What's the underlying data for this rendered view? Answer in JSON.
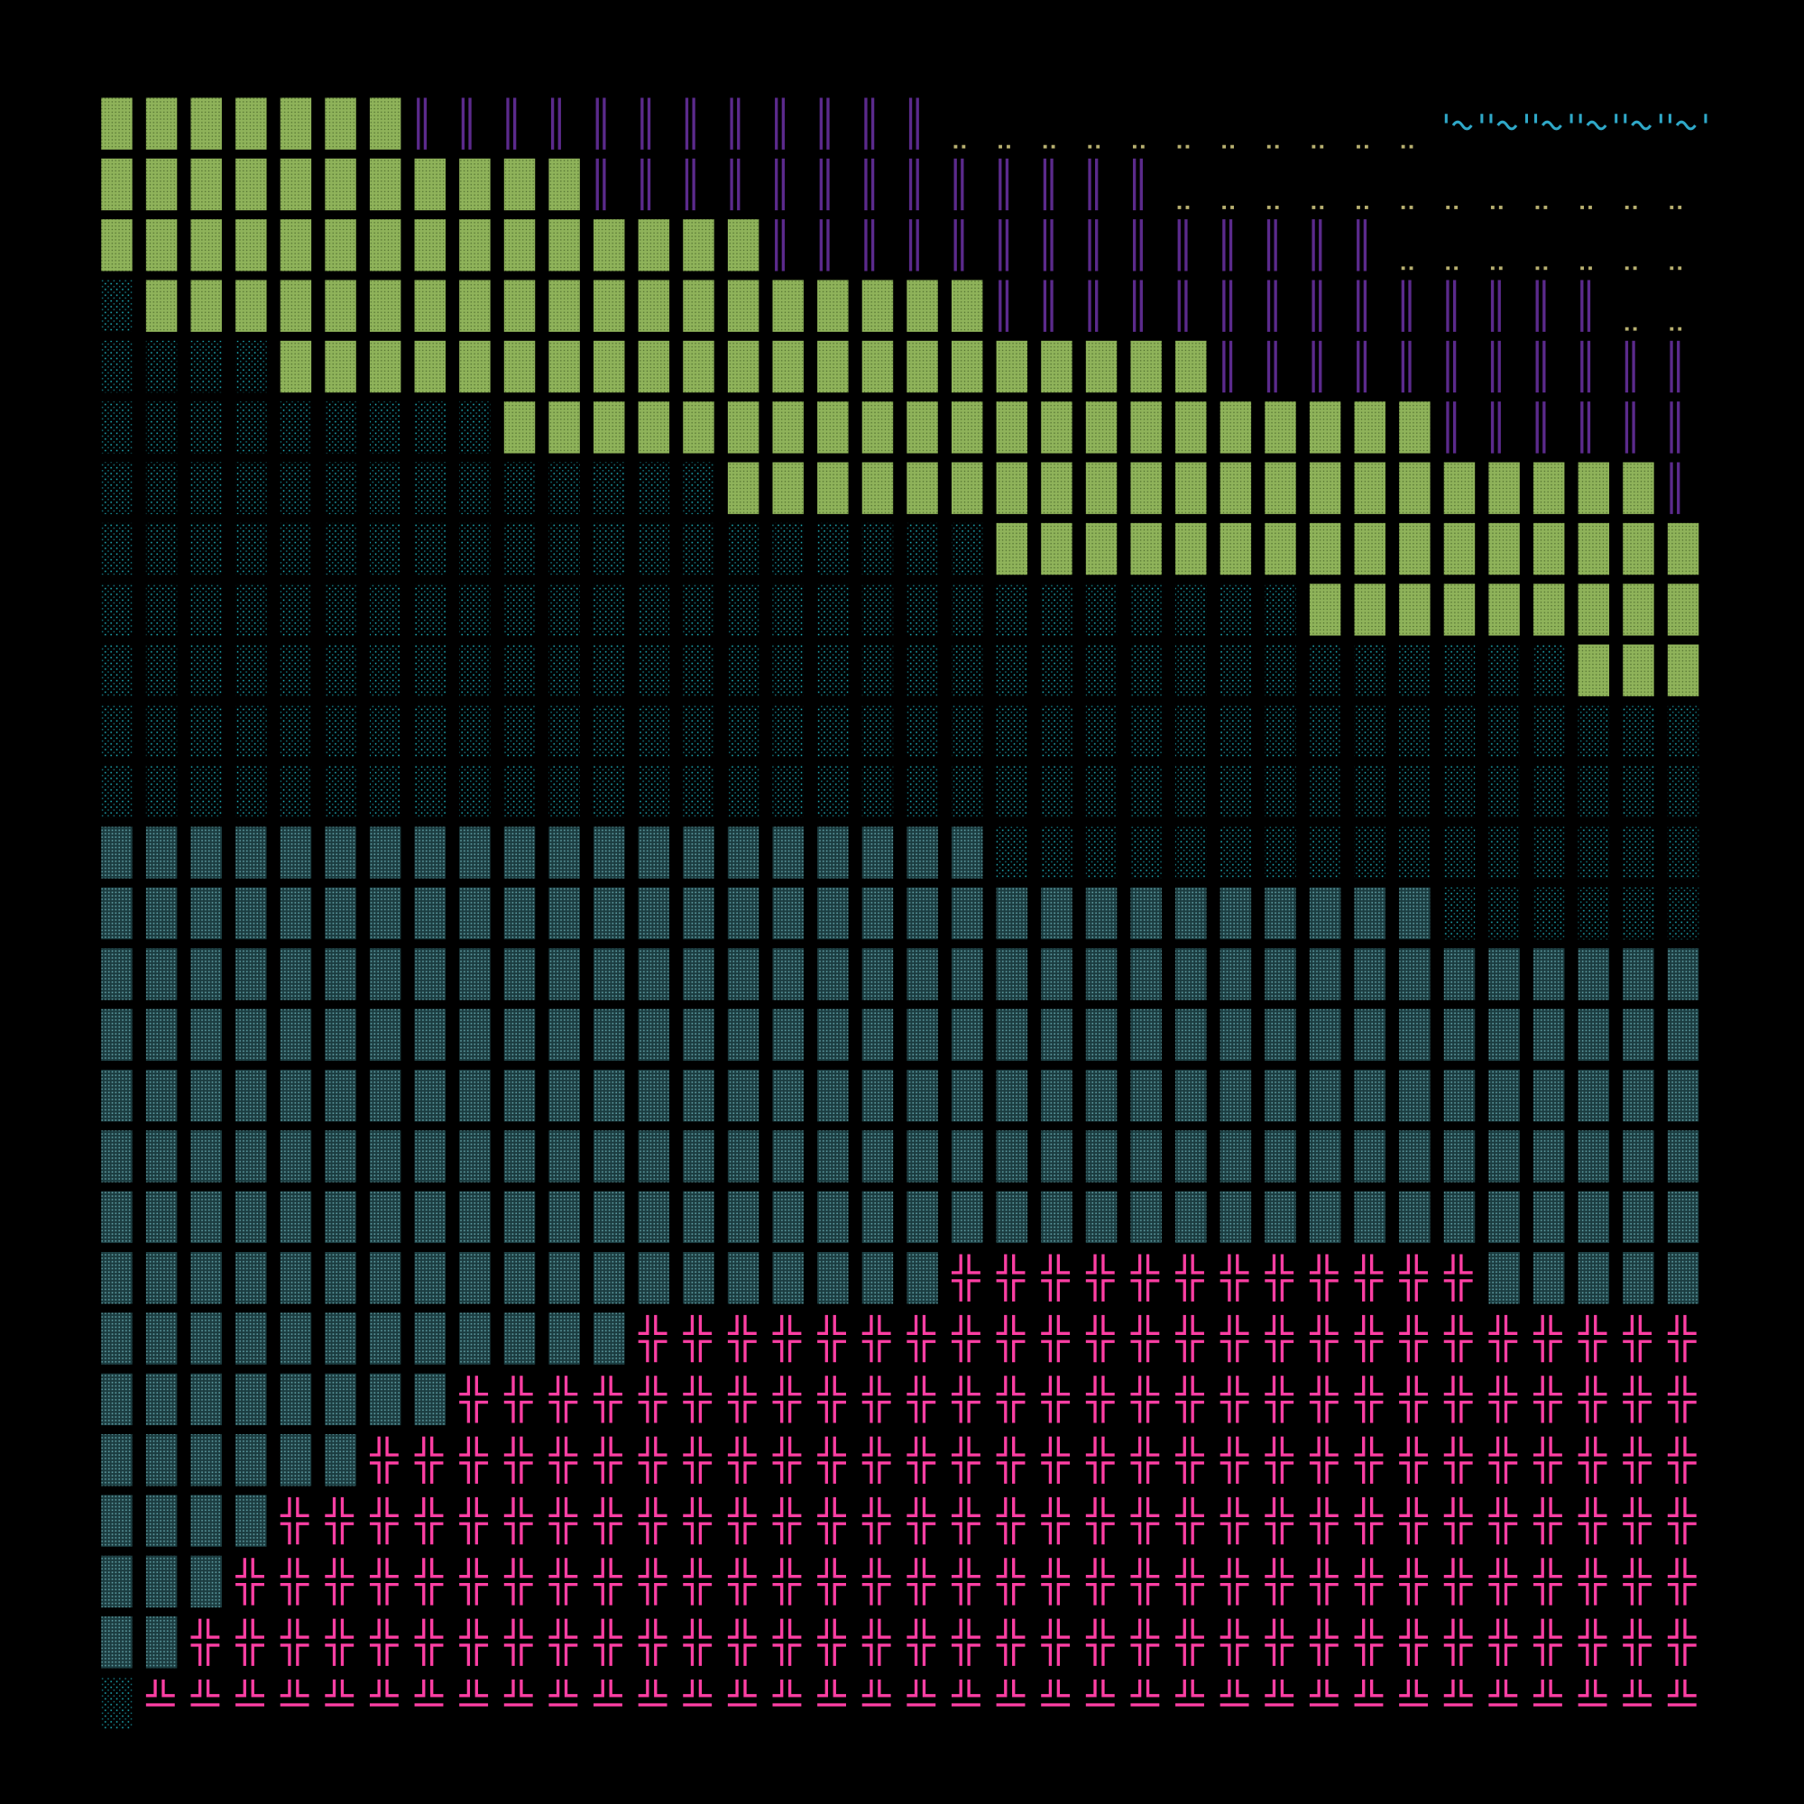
{
  "grid": {
    "rows": [
      [
        [
          "G",
          7
        ],
        [
          "P",
          12
        ],
        [
          "D",
          11
        ],
        [
          "W",
          6
        ]
      ],
      [
        [
          "G",
          11
        ],
        [
          "P",
          13
        ],
        [
          "D",
          12
        ]
      ],
      [
        [
          "G",
          15
        ],
        [
          "P",
          14
        ],
        [
          "D",
          7
        ]
      ],
      [
        [
          "C",
          1
        ],
        [
          "G",
          19
        ],
        [
          "P",
          14
        ],
        [
          "D",
          2
        ]
      ],
      [
        [
          "C",
          4
        ],
        [
          "G",
          21
        ],
        [
          "P",
          11
        ]
      ],
      [
        [
          "C",
          9
        ],
        [
          "G",
          21
        ],
        [
          "P",
          6
        ]
      ],
      [
        [
          "C",
          14
        ],
        [
          "G",
          21
        ],
        [
          "P",
          1
        ]
      ],
      [
        [
          "C",
          20
        ],
        [
          "G",
          16
        ]
      ],
      [
        [
          "C",
          27
        ],
        [
          "G",
          9
        ]
      ],
      [
        [
          "C",
          33
        ],
        [
          "G",
          3
        ]
      ],
      [
        [
          "C",
          36
        ]
      ],
      [
        [
          "C",
          36
        ]
      ],
      [
        [
          "T",
          20
        ],
        [
          "C",
          16
        ]
      ],
      [
        [
          "T",
          30
        ],
        [
          "C",
          6
        ]
      ],
      [
        [
          "T",
          36
        ]
      ],
      [
        [
          "T",
          36
        ]
      ],
      [
        [
          "T",
          36
        ]
      ],
      [
        [
          "T",
          36
        ]
      ],
      [
        [
          "T",
          36
        ]
      ],
      [
        [
          "T",
          19
        ],
        [
          "K",
          12
        ],
        [
          "T",
          5
        ]
      ],
      [
        [
          "T",
          12
        ],
        [
          "K",
          24
        ]
      ],
      [
        [
          "T",
          8
        ],
        [
          "K",
          28
        ]
      ],
      [
        [
          "T",
          6
        ],
        [
          "K",
          30
        ]
      ],
      [
        [
          "T",
          4
        ],
        [
          "K",
          32
        ]
      ],
      [
        [
          "T",
          3
        ],
        [
          "K",
          33
        ]
      ],
      [
        [
          "T",
          2
        ],
        [
          "K",
          34
        ]
      ],
      [
        [
          "C",
          1
        ],
        [
          "B",
          35
        ]
      ]
    ]
  }
}
